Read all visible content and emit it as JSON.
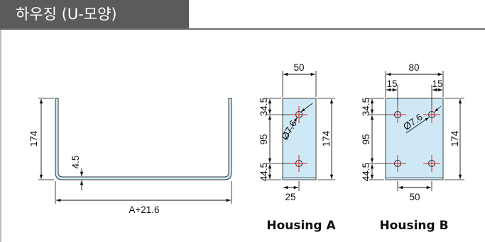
{
  "header": {
    "title": "하우징 (U-모양)"
  },
  "u_channel": {
    "height_label": "174",
    "thickness_label": "4.5",
    "length_label": "A+21.6"
  },
  "housing_a": {
    "caption": "Housing A",
    "width_label": "50",
    "height_label": "174",
    "top_offset_label": "34.5",
    "hole_spacing_label": "95",
    "bottom_offset_label": "44.5",
    "hole_diameter_label": "Ø7.6",
    "hole_x_offset_label": "25"
  },
  "housing_b": {
    "caption": "Housing B",
    "width_label": "80",
    "height_label": "174",
    "left_margin_label": "15",
    "right_margin_label": "15",
    "top_offset_label": "34.5",
    "hole_spacing_label": "95",
    "bottom_offset_label": "44.5",
    "hole_diameter_label": "Ø7.6",
    "hole_x_spacing_label": "50"
  },
  "colors": {
    "plate_fill": "#cfe8f6",
    "hole_mark": "#e0201b",
    "header_bg": "#5b5b5b"
  }
}
